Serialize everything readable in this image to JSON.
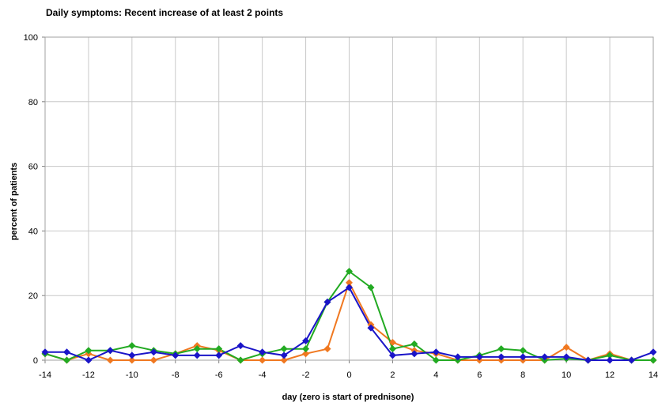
{
  "chart_data": {
    "type": "line",
    "title": "Daily symptoms: Recent increase of at least 2 points",
    "xlabel": "day (zero is start of prednisone)",
    "ylabel": "percent of patients",
    "xlim": [
      -14,
      14
    ],
    "ylim": [
      0,
      100
    ],
    "x_ticks": [
      -14,
      -12,
      -10,
      -8,
      -6,
      -4,
      -2,
      0,
      2,
      4,
      6,
      8,
      10,
      12,
      14
    ],
    "y_ticks": [
      0,
      20,
      40,
      60,
      80,
      100
    ],
    "grid": true,
    "legend": "none",
    "x": [
      -14,
      -13,
      -12,
      -11,
      -10,
      -9,
      -8,
      -7,
      -6,
      -5,
      -4,
      -3,
      -2,
      -1,
      0,
      1,
      2,
      3,
      4,
      5,
      6,
      7,
      8,
      9,
      10,
      11,
      12,
      13,
      14
    ],
    "series": [
      {
        "color": "#f07820",
        "marker": "diamond",
        "values": [
          2,
          0,
          2,
          0,
          0,
          0,
          2,
          4.5,
          3,
          0,
          0,
          0,
          2,
          3.5,
          24,
          11,
          5.5,
          3,
          2,
          0,
          0,
          0,
          0,
          0,
          4,
          0,
          2,
          0,
          0
        ]
      },
      {
        "color": "#22aa22",
        "marker": "diamond",
        "values": [
          2,
          0,
          3,
          3,
          4.5,
          3,
          2,
          3.5,
          3.5,
          0,
          2,
          3.5,
          3.5,
          18,
          27.5,
          22.5,
          3.5,
          5,
          0,
          0,
          1.5,
          3.5,
          3,
          0,
          0.5,
          0,
          1.5,
          0,
          0
        ]
      },
      {
        "color": "#1a14c8",
        "marker": "diamond",
        "values": [
          2.5,
          2.5,
          0,
          3,
          1.5,
          2.5,
          1.5,
          1.5,
          1.5,
          4.5,
          2.5,
          1.5,
          6,
          18,
          22.5,
          10,
          1.5,
          2,
          2.5,
          1,
          1,
          1,
          1,
          1,
          1,
          0,
          0,
          0,
          2.5
        ]
      }
    ]
  }
}
